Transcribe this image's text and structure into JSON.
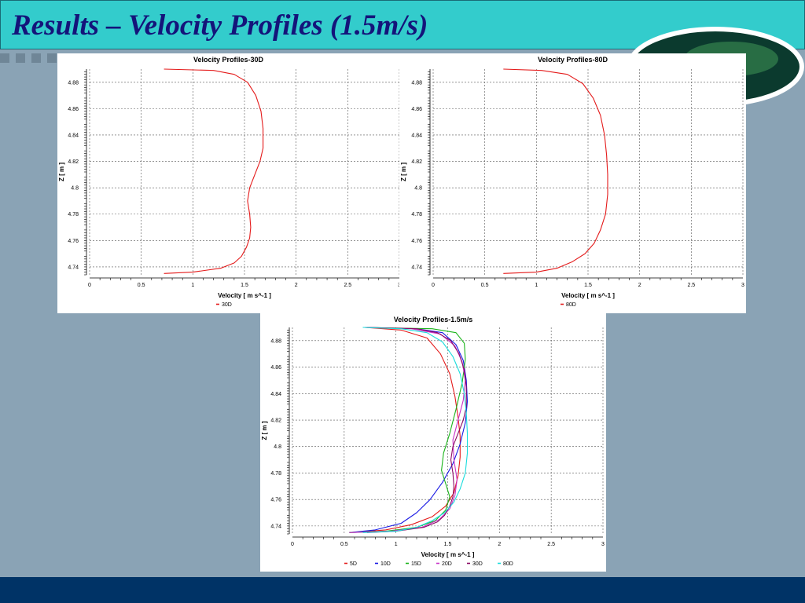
{
  "slide": {
    "title": "Results – Velocity Profiles (1.5m/s)"
  },
  "colors": {
    "title_bar": "#33cccc",
    "title_text": "#14147a",
    "background": "#8aa3b5",
    "bottom_bar": "#003366"
  },
  "chart_data": [
    {
      "type": "line",
      "title": "Velocity Profiles-30D",
      "xlabel": "Velocity [ m s^-1 ]",
      "ylabel": "Z [ m ]",
      "xlim": [
        0,
        3
      ],
      "ylim": [
        4.734,
        4.89
      ],
      "xticks": [
        "0",
        "0.5",
        "1",
        "1.5",
        "2",
        "2.5",
        "3"
      ],
      "yticks": [
        "4.74",
        "4.76",
        "4.78",
        "4.8",
        "4.82",
        "4.84",
        "4.86",
        "4.88"
      ],
      "grid": true,
      "legend_position": "bottom-center",
      "series": [
        {
          "name": "30D",
          "color": "#e41a1a",
          "points": [
            [
              0.72,
              4.735
            ],
            [
              1.0,
              4.736
            ],
            [
              1.27,
              4.739
            ],
            [
              1.4,
              4.743
            ],
            [
              1.47,
              4.748
            ],
            [
              1.52,
              4.755
            ],
            [
              1.55,
              4.762
            ],
            [
              1.56,
              4.77
            ],
            [
              1.55,
              4.78
            ],
            [
              1.53,
              4.79
            ],
            [
              1.55,
              4.8
            ],
            [
              1.6,
              4.81
            ],
            [
              1.65,
              4.82
            ],
            [
              1.68,
              4.83
            ],
            [
              1.68,
              4.845
            ],
            [
              1.66,
              4.858
            ],
            [
              1.61,
              4.87
            ],
            [
              1.53,
              4.88
            ],
            [
              1.4,
              4.886
            ],
            [
              1.2,
              4.889
            ],
            [
              0.72,
              4.89
            ]
          ]
        }
      ]
    },
    {
      "type": "line",
      "title": "Velocity Profiles-80D",
      "xlabel": "Velocity [ m s^-1 ]",
      "ylabel": "Z [ m ]",
      "xlim": [
        0,
        3
      ],
      "ylim": [
        4.734,
        4.89
      ],
      "xticks": [
        "0",
        "0.5",
        "1",
        "1.5",
        "2",
        "2.5",
        "3"
      ],
      "yticks": [
        "4.74",
        "4.76",
        "4.78",
        "4.8",
        "4.82",
        "4.84",
        "4.86",
        "4.88"
      ],
      "grid": true,
      "legend_position": "bottom-center",
      "series": [
        {
          "name": "80D",
          "color": "#e41a1a",
          "points": [
            [
              0.68,
              4.735
            ],
            [
              1.0,
              4.736
            ],
            [
              1.2,
              4.739
            ],
            [
              1.35,
              4.744
            ],
            [
              1.47,
              4.75
            ],
            [
              1.56,
              4.758
            ],
            [
              1.62,
              4.768
            ],
            [
              1.67,
              4.78
            ],
            [
              1.69,
              4.795
            ],
            [
              1.69,
              4.81
            ],
            [
              1.68,
              4.825
            ],
            [
              1.66,
              4.84
            ],
            [
              1.62,
              4.855
            ],
            [
              1.55,
              4.868
            ],
            [
              1.45,
              4.879
            ],
            [
              1.3,
              4.886
            ],
            [
              1.05,
              4.889
            ],
            [
              0.68,
              4.89
            ]
          ]
        }
      ]
    },
    {
      "type": "line",
      "title": "Velocity Profiles-1.5m/s",
      "xlabel": "Velocity [ m s^-1 ]",
      "ylabel": "Z [ m ]",
      "xlim": [
        0,
        3
      ],
      "ylim": [
        4.734,
        4.89
      ],
      "xticks": [
        "0",
        "0.5",
        "1",
        "1.5",
        "2",
        "2.5",
        "3"
      ],
      "yticks": [
        "4.74",
        "4.76",
        "4.78",
        "4.8",
        "4.82",
        "4.84",
        "4.86",
        "4.88"
      ],
      "grid": true,
      "legend_position": "bottom-center",
      "series": [
        {
          "name": "5D",
          "color": "#e41a1a",
          "points": [
            [
              0.55,
              4.735
            ],
            [
              0.9,
              4.737
            ],
            [
              1.15,
              4.741
            ],
            [
              1.35,
              4.747
            ],
            [
              1.48,
              4.755
            ],
            [
              1.56,
              4.765
            ],
            [
              1.6,
              4.778
            ],
            [
              1.62,
              4.792
            ],
            [
              1.62,
              4.808
            ],
            [
              1.6,
              4.822
            ],
            [
              1.57,
              4.838
            ],
            [
              1.52,
              4.855
            ],
            [
              1.43,
              4.87
            ],
            [
              1.3,
              4.882
            ],
            [
              1.05,
              4.888
            ],
            [
              0.7,
              4.89
            ]
          ]
        },
        {
          "name": "10D",
          "color": "#1a1ae4",
          "points": [
            [
              0.55,
              4.735
            ],
            [
              0.8,
              4.737
            ],
            [
              1.05,
              4.742
            ],
            [
              1.2,
              4.75
            ],
            [
              1.33,
              4.76
            ],
            [
              1.45,
              4.773
            ],
            [
              1.55,
              4.787
            ],
            [
              1.62,
              4.802
            ],
            [
              1.67,
              4.818
            ],
            [
              1.69,
              4.834
            ],
            [
              1.68,
              4.85
            ],
            [
              1.65,
              4.865
            ],
            [
              1.58,
              4.877
            ],
            [
              1.45,
              4.886
            ],
            [
              1.2,
              4.889
            ],
            [
              0.7,
              4.89
            ]
          ]
        },
        {
          "name": "15D",
          "color": "#1ab41a",
          "points": [
            [
              0.55,
              4.735
            ],
            [
              0.9,
              4.736
            ],
            [
              1.2,
              4.739
            ],
            [
              1.38,
              4.744
            ],
            [
              1.48,
              4.752
            ],
            [
              1.52,
              4.762
            ],
            [
              1.48,
              4.772
            ],
            [
              1.44,
              4.782
            ],
            [
              1.46,
              4.795
            ],
            [
              1.52,
              4.81
            ],
            [
              1.58,
              4.828
            ],
            [
              1.64,
              4.848
            ],
            [
              1.67,
              4.866
            ],
            [
              1.66,
              4.878
            ],
            [
              1.58,
              4.886
            ],
            [
              1.35,
              4.889
            ],
            [
              0.7,
              4.89
            ]
          ]
        },
        {
          "name": "20D",
          "color": "#c832c8",
          "points": [
            [
              0.55,
              4.735
            ],
            [
              0.95,
              4.736
            ],
            [
              1.25,
              4.739
            ],
            [
              1.42,
              4.745
            ],
            [
              1.52,
              4.753
            ],
            [
              1.57,
              4.763
            ],
            [
              1.59,
              4.775
            ],
            [
              1.56,
              4.79
            ],
            [
              1.55,
              4.805
            ],
            [
              1.6,
              4.82
            ],
            [
              1.65,
              4.835
            ],
            [
              1.67,
              4.85
            ],
            [
              1.64,
              4.864
            ],
            [
              1.57,
              4.876
            ],
            [
              1.43,
              4.885
            ],
            [
              1.15,
              4.889
            ],
            [
              0.7,
              4.89
            ]
          ]
        },
        {
          "name": "30D",
          "color": "#8b0a64",
          "points": [
            [
              0.72,
              4.735
            ],
            [
              1.0,
              4.736
            ],
            [
              1.27,
              4.739
            ],
            [
              1.4,
              4.743
            ],
            [
              1.47,
              4.748
            ],
            [
              1.52,
              4.755
            ],
            [
              1.55,
              4.762
            ],
            [
              1.56,
              4.77
            ],
            [
              1.55,
              4.78
            ],
            [
              1.53,
              4.79
            ],
            [
              1.55,
              4.8
            ],
            [
              1.6,
              4.81
            ],
            [
              1.65,
              4.82
            ],
            [
              1.68,
              4.83
            ],
            [
              1.68,
              4.845
            ],
            [
              1.66,
              4.858
            ],
            [
              1.61,
              4.87
            ],
            [
              1.53,
              4.88
            ],
            [
              1.4,
              4.886
            ],
            [
              1.2,
              4.889
            ],
            [
              0.72,
              4.89
            ]
          ]
        },
        {
          "name": "80D",
          "color": "#1adcdc",
          "points": [
            [
              0.68,
              4.735
            ],
            [
              1.0,
              4.736
            ],
            [
              1.2,
              4.739
            ],
            [
              1.35,
              4.744
            ],
            [
              1.47,
              4.75
            ],
            [
              1.56,
              4.758
            ],
            [
              1.62,
              4.768
            ],
            [
              1.67,
              4.78
            ],
            [
              1.69,
              4.795
            ],
            [
              1.69,
              4.81
            ],
            [
              1.68,
              4.825
            ],
            [
              1.66,
              4.84
            ],
            [
              1.62,
              4.855
            ],
            [
              1.55,
              4.868
            ],
            [
              1.45,
              4.879
            ],
            [
              1.3,
              4.886
            ],
            [
              1.05,
              4.889
            ],
            [
              0.68,
              4.89
            ]
          ]
        }
      ]
    }
  ]
}
